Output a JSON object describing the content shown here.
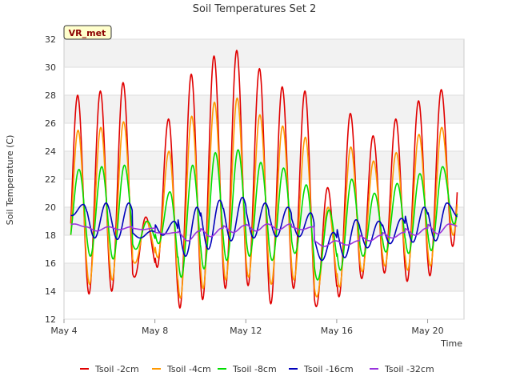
{
  "chart_data": {
    "type": "line",
    "title": "Soil Temperatures Set 2",
    "xlabel": "Time",
    "ylabel": "Soil Temperature (C)",
    "badge": "VR_met",
    "ylim": [
      12,
      32
    ],
    "xlim_days": [
      4,
      21.6
    ],
    "y_ticks": [
      12,
      14,
      16,
      18,
      20,
      22,
      24,
      26,
      28,
      30,
      32
    ],
    "x_ticks": [
      {
        "label": "May 4",
        "day": 4
      },
      {
        "label": "May 8",
        "day": 8
      },
      {
        "label": "May 12",
        "day": 12
      },
      {
        "label": "May 16",
        "day": 16
      },
      {
        "label": "May 20",
        "day": 20
      }
    ],
    "grid": true,
    "legend_position": "bottom",
    "series": [
      {
        "name": "Tsoil -2cm",
        "color": "#e00000",
        "phase": 0.6,
        "peaks": [
          28,
          28.3,
          28.9,
          19.3,
          26.3,
          29.5,
          30.8,
          31.2,
          29.9,
          28.6,
          28.3,
          21.4,
          26.7,
          25.1,
          26.3,
          27.6,
          28.4
        ],
        "troughs": [
          14,
          13.8,
          14,
          15,
          15.7,
          12.8,
          13.4,
          14.2,
          14.4,
          13.1,
          14.2,
          12.9,
          13.6,
          14.9,
          15.3,
          14.7,
          15.1,
          17.2
        ]
      },
      {
        "name": "Tsoil -4cm",
        "color": "#ff9900",
        "phase": 0.62,
        "peaks": [
          25.5,
          25.7,
          26.1,
          19,
          24,
          26.5,
          27.5,
          27.8,
          26.6,
          25.8,
          25,
          20,
          24.3,
          23.3,
          23.9,
          25.2,
          25.7
        ],
        "troughs": [
          15,
          14.5,
          14.8,
          16,
          16.4,
          13.5,
          14.2,
          14.8,
          15,
          14.5,
          14.8,
          13.6,
          14.3,
          15.4,
          15.8,
          15.5,
          15.8,
          18
        ]
      },
      {
        "name": "Tsoil -8cm",
        "color": "#00dd00",
        "phase": 0.66,
        "peaks": [
          22.7,
          22.9,
          23,
          19,
          21.1,
          23,
          23.9,
          24.1,
          23.2,
          22.8,
          21.6,
          19.8,
          22,
          21,
          21.7,
          22.4,
          22.9
        ],
        "troughs": [
          17,
          16.5,
          16.3,
          17,
          17.4,
          15,
          15.6,
          16.2,
          16.5,
          16.2,
          16.7,
          14.8,
          15.5,
          16.5,
          16.8,
          16.7,
          16.9,
          18.8
        ]
      },
      {
        "name": "Tsoil -16cm",
        "color": "#0000bb",
        "phase": 0.85,
        "peaks": [
          20.2,
          20.3,
          20.3,
          18.3,
          19,
          20,
          20.5,
          20.7,
          20.3,
          20,
          19.6,
          18.2,
          19.1,
          19,
          19.2,
          20,
          20.3
        ],
        "troughs": [
          19.4,
          17.8,
          17.7,
          17.8,
          18,
          16.5,
          17,
          17.6,
          17.8,
          17.9,
          17.9,
          16.2,
          16.4,
          17.1,
          17.4,
          17.5,
          17.6,
          19.3
        ]
      },
      {
        "name": "Tsoil -32cm",
        "color": "#9933dd",
        "phase": 0.95,
        "peaks": [
          18.6,
          18.6,
          18.6,
          18.5,
          18.2,
          18.3,
          18.5,
          18.7,
          18.8,
          18.8,
          18.6,
          17.6,
          17.6,
          18,
          18.2,
          18.5,
          18.8
        ],
        "troughs": [
          18.8,
          18.3,
          18.4,
          18.4,
          18.1,
          17.6,
          17.9,
          18.2,
          18.3,
          18.4,
          18.4,
          17.2,
          17.3,
          17.6,
          17.8,
          18,
          18.1,
          18.6
        ]
      }
    ]
  }
}
